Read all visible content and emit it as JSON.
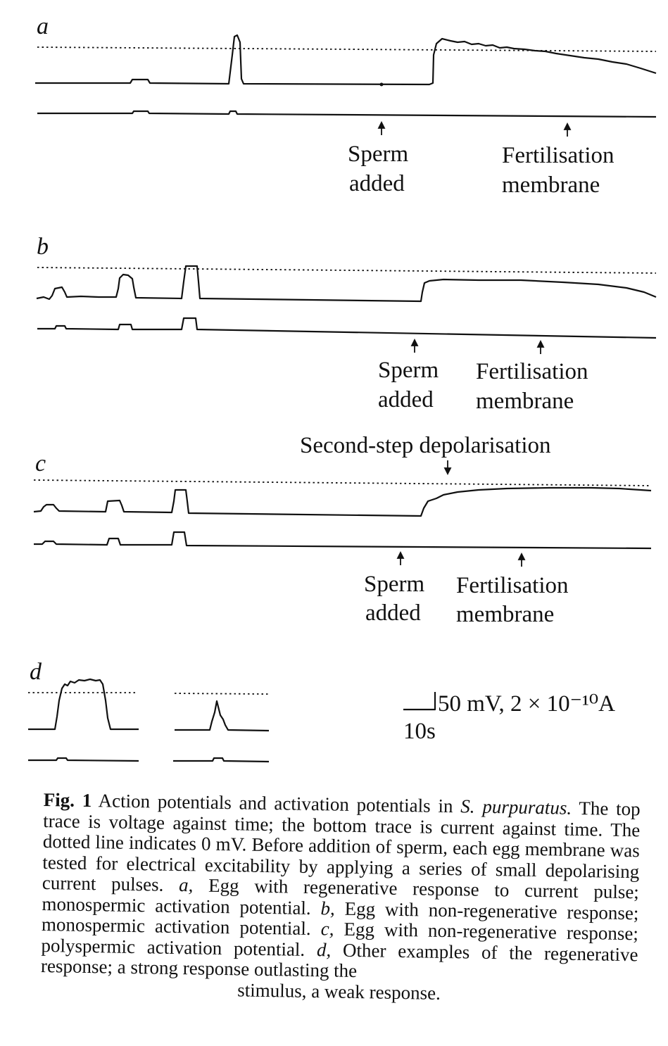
{
  "figure": {
    "panels": [
      {
        "letter": "a",
        "labels": [
          {
            "line1": "Sperm",
            "line2": "added"
          },
          {
            "line1": "Fertilisation",
            "line2": "membrane"
          }
        ]
      },
      {
        "letter": "b",
        "labels": [
          {
            "line1": "Sperm",
            "line2": "added"
          },
          {
            "line1": "Fertilisation",
            "line2": "membrane"
          }
        ]
      },
      {
        "letter": "c",
        "top_label": "Second-step depolarisation",
        "labels": [
          {
            "line1": "Sperm",
            "line2": "added"
          },
          {
            "line1": "Fertilisation",
            "line2": "membrane"
          }
        ]
      },
      {
        "letter": "d"
      }
    ],
    "scale_bar": {
      "amplitude": "50 mV, 2 × 10⁻¹⁰A",
      "time": "10s"
    }
  },
  "caption": {
    "fig_label": "Fig. 1",
    "title": "Action potentials and activation potentials in",
    "species": "S. purpuratus.",
    "body1": "The top trace is voltage against time; the bottom trace is current against time. The dotted line indicates 0 mV. Before addition of sperm, each egg membrane was tested for electrical excitability by applying a series of small depolarising current pulses.",
    "a": "a,",
    "a_text": "Egg with regenerative response to current pulse; monospermic activation potential.",
    "b": "b,",
    "b_text": "Egg with non-regenerative response; monospermic activation potential.",
    "c": "c,",
    "c_text": "Egg with non-regenerative response; polyspermic activation potential.",
    "d": "d,",
    "d_text": "Other examples of the regenerative response; a strong response outlasting the",
    "last_line": "stimulus, a weak response."
  }
}
